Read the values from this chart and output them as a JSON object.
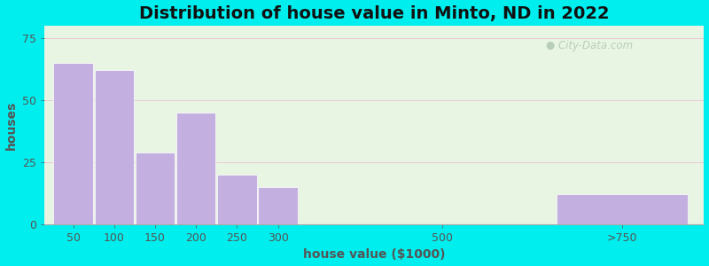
{
  "title": "Distribution of house value in Minto, ND in 2022",
  "xlabel": "house value ($1000)",
  "ylabel": "houses",
  "bar_labels": [
    "50",
    "100",
    "150",
    "200",
    "250",
    "300",
    "500",
    ">750"
  ],
  "bar_values": [
    65,
    62,
    29,
    45,
    20,
    15,
    0,
    12
  ],
  "bar_color": "#C4B0E0",
  "bar_edgecolor": "#ffffff",
  "yticks": [
    0,
    25,
    50,
    75
  ],
  "ylim": [
    0,
    80
  ],
  "bg_color_outer": "#00EEEE",
  "bg_color_plot": "#e8f5e2",
  "title_fontsize": 14,
  "axis_label_fontsize": 10,
  "tick_label_fontsize": 9,
  "watermark_text": "City-Data.com",
  "watermark_color": "#bbccbb",
  "x_positions": [
    50,
    100,
    150,
    200,
    250,
    300,
    500,
    720
  ],
  "bar_widths": [
    48,
    48,
    48,
    48,
    48,
    48,
    0,
    160
  ],
  "xlim": [
    15,
    820
  ]
}
